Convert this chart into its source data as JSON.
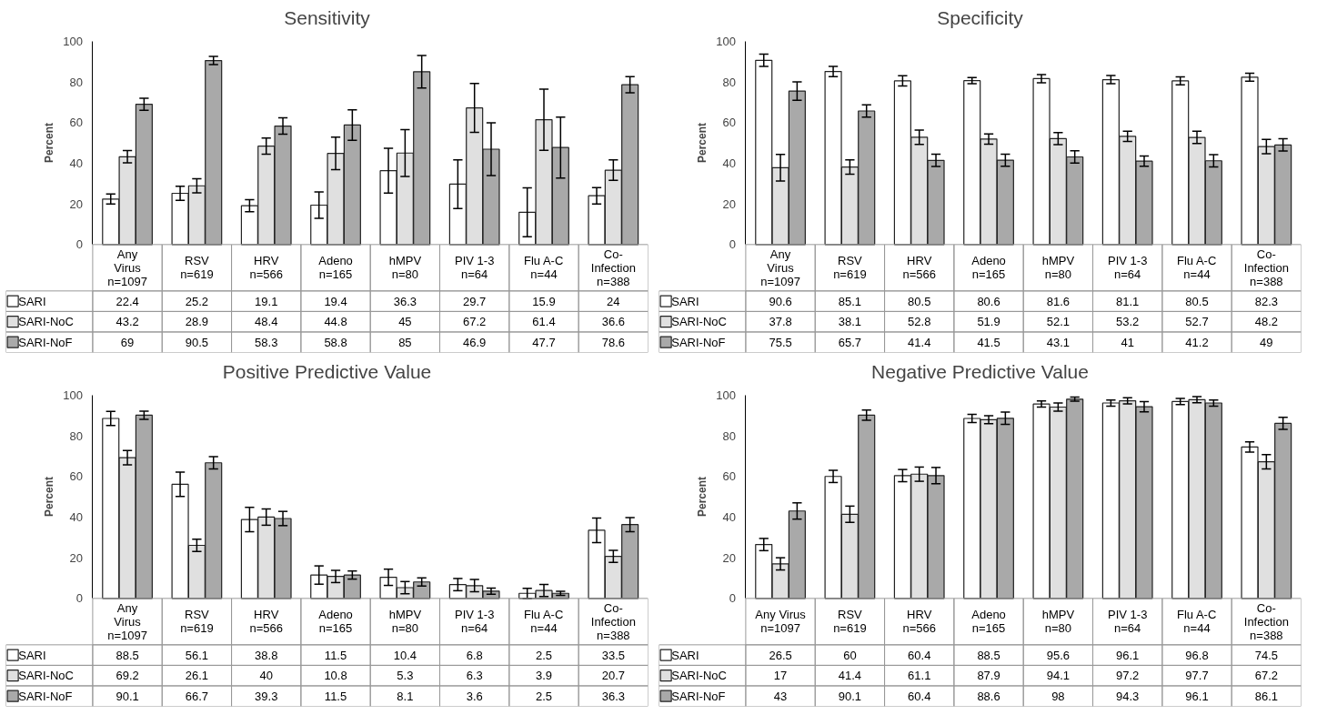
{
  "chart_data": [
    {
      "type": "bar",
      "title": "Sensitivity",
      "ylabel": "Percent",
      "ylim": [
        0,
        100
      ],
      "yticks": [
        0,
        20,
        40,
        60,
        80,
        100
      ],
      "grid": false,
      "legend": "bottom left",
      "data_labels": true,
      "categories": [
        "Any\nVirus\nn=1097",
        "RSV\nn=619",
        "HRV\nn=566",
        "Adeno\nn=165",
        "hMPV\nn=80",
        "PIV 1-3\nn=64",
        "Flu A-C\nn=44",
        "Co-\nInfection\nn=388"
      ],
      "series": [
        {
          "name": "SARI",
          "color": "#ffffff",
          "values": [
            22.4,
            25.2,
            19.1,
            19.4,
            36.3,
            29.7,
            15.9,
            24
          ],
          "errors": [
            2.5,
            3.5,
            3,
            6.5,
            11,
            12,
            12,
            4
          ]
        },
        {
          "name": "SARI-NoC",
          "color": "#e0e0e0",
          "values": [
            43.2,
            28.9,
            48.4,
            44.8,
            45,
            67.2,
            61.4,
            36.6
          ],
          "errors": [
            3,
            3.5,
            4,
            8,
            11.5,
            12,
            15,
            5
          ]
        },
        {
          "name": "SARI-NoF",
          "color": "#a9a9a9",
          "values": [
            69,
            90.5,
            58.3,
            58.8,
            85,
            46.9,
            47.7,
            78.6
          ],
          "errors": [
            3,
            2,
            4,
            7.5,
            8,
            13,
            15,
            4
          ]
        }
      ]
    },
    {
      "type": "bar",
      "title": "Specificity",
      "ylabel": "Percent",
      "ylim": [
        0,
        100
      ],
      "yticks": [
        0,
        20,
        40,
        60,
        80,
        100
      ],
      "grid": false,
      "legend": "bottom left",
      "data_labels": true,
      "categories": [
        "Any\nVirus\nn=1097",
        "RSV\nn=619",
        "HRV\nn=566",
        "Adeno\nn=165",
        "hMPV\nn=80",
        "PIV 1-3\nn=64",
        "Flu A-C\nn=44",
        "Co-\nInfection\nn=388"
      ],
      "series": [
        {
          "name": "SARI",
          "color": "#ffffff",
          "values": [
            90.6,
            85.1,
            80.5,
            80.6,
            81.6,
            81.1,
            80.5,
            82.3
          ],
          "errors": [
            3,
            2.5,
            2.5,
            1.5,
            2,
            2,
            2,
            2
          ]
        },
        {
          "name": "SARI-NoC",
          "color": "#e0e0e0",
          "values": [
            37.8,
            38.1,
            52.8,
            51.9,
            52.1,
            53.2,
            52.7,
            48.2
          ],
          "errors": [
            6.5,
            3.5,
            3.5,
            2.5,
            3,
            2.5,
            3,
            3.5
          ]
        },
        {
          "name": "SARI-NoF",
          "color": "#a9a9a9",
          "values": [
            75.5,
            65.7,
            41.4,
            41.5,
            43.1,
            41,
            41.2,
            49
          ],
          "errors": [
            4.5,
            3,
            3,
            3,
            3,
            2.5,
            3,
            3
          ]
        }
      ]
    },
    {
      "type": "bar",
      "title": "Positive Predictive Value",
      "ylabel": "Percent",
      "ylim": [
        0,
        100
      ],
      "yticks": [
        0,
        20,
        40,
        60,
        80,
        100
      ],
      "grid": false,
      "legend": "bottom left",
      "data_labels": true,
      "categories": [
        "Any\nVirus\nn=1097",
        "RSV\nn=619",
        "HRV\nn=566",
        "Adeno\nn=165",
        "hMPV\nn=80",
        "PIV 1-3\nn=64",
        "Flu A-C\nn=44",
        "Co-\nInfection\nn=388"
      ],
      "series": [
        {
          "name": "SARI",
          "color": "#ffffff",
          "values": [
            88.5,
            56.1,
            38.8,
            11.5,
            10.4,
            6.8,
            2.5,
            33.5
          ],
          "errors": [
            3.5,
            6,
            6,
            4.5,
            4,
            3,
            2.5,
            6
          ]
        },
        {
          "name": "SARI-NoC",
          "color": "#e0e0e0",
          "values": [
            69.2,
            26.1,
            40,
            10.8,
            5.3,
            6.3,
            3.9,
            20.7
          ],
          "errors": [
            3.5,
            3,
            4,
            3,
            3,
            3,
            3,
            3
          ]
        },
        {
          "name": "SARI-NoF",
          "color": "#a9a9a9",
          "values": [
            90.1,
            66.7,
            39.3,
            11.5,
            8.1,
            3.6,
            2.5,
            36.3
          ],
          "errors": [
            2,
            3,
            3.5,
            2,
            2,
            1.5,
            1,
            3.5
          ]
        }
      ]
    },
    {
      "type": "bar",
      "title": "Negative Predictive Value",
      "ylabel": "Percent",
      "ylim": [
        0,
        100
      ],
      "yticks": [
        0,
        20,
        40,
        60,
        80,
        100
      ],
      "grid": false,
      "legend": "bottom left",
      "data_labels": true,
      "categories": [
        "Any Virus\nn=1097",
        "RSV\nn=619",
        "HRV\nn=566",
        "Adeno\nn=165",
        "hMPV\nn=80",
        "PIV 1-3\nn=64",
        "Flu A-C\nn=44",
        "Co-\nInfection\nn=388"
      ],
      "series": [
        {
          "name": "SARI",
          "color": "#ffffff",
          "values": [
            26.5,
            60,
            60.4,
            88.5,
            95.6,
            96.1,
            96.8,
            74.5
          ],
          "errors": [
            3,
            3,
            3,
            2,
            1.5,
            1.5,
            1.5,
            2.5
          ]
        },
        {
          "name": "SARI-NoC",
          "color": "#e0e0e0",
          "values": [
            17,
            41.4,
            61.1,
            87.9,
            94.1,
            97.2,
            97.7,
            67.2
          ],
          "errors": [
            3,
            4,
            3.5,
            2,
            2,
            1.5,
            1.5,
            3.5
          ]
        },
        {
          "name": "SARI-NoF",
          "color": "#a9a9a9",
          "values": [
            43,
            90.1,
            60.4,
            88.6,
            98,
            94.3,
            96.1,
            86.1
          ],
          "errors": [
            4,
            2.5,
            4,
            3,
            1,
            2.5,
            1.5,
            3
          ]
        }
      ]
    }
  ]
}
